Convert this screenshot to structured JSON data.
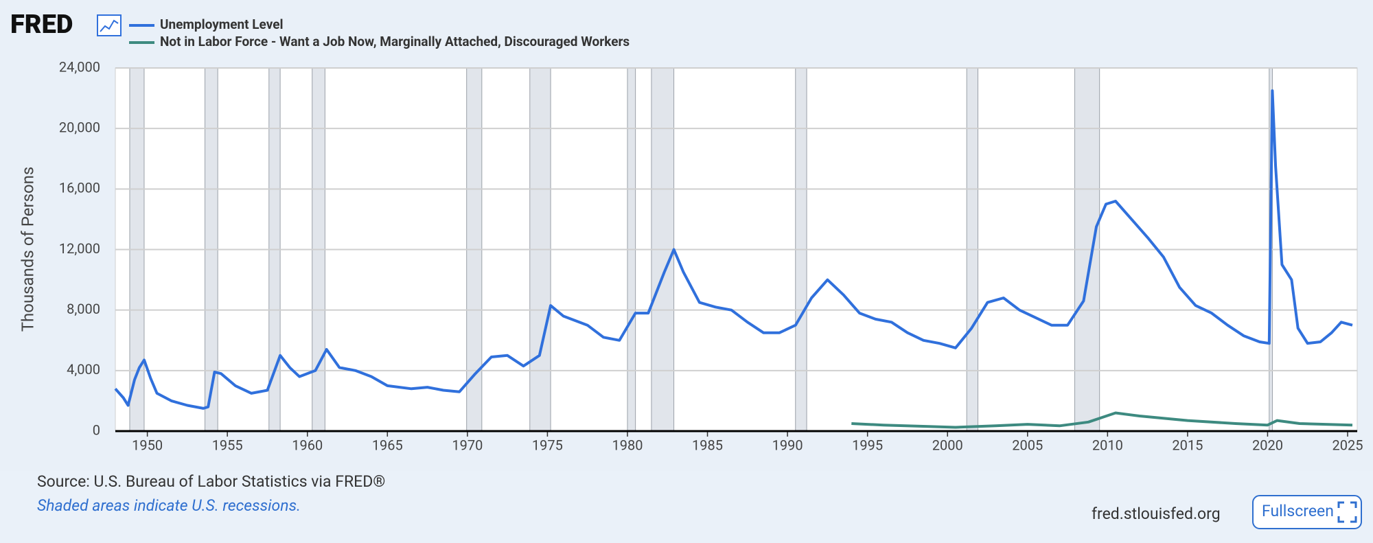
{
  "logo": "FRED",
  "chart_data": {
    "type": "line",
    "y_label": "Thousands of Persons",
    "source": "Source: U.S. Bureau of Labor Statistics via FRED®",
    "note": "Shaded areas indicate U.S. recessions.",
    "site": "fred.stlouisfed.org",
    "button": "Fullscreen",
    "xlim": [
      1948,
      2025.6
    ],
    "ylim": [
      0,
      24000
    ],
    "xticks": [
      1950,
      1955,
      1960,
      1965,
      1970,
      1975,
      1980,
      1985,
      1990,
      1995,
      2000,
      2005,
      2010,
      2015,
      2020,
      2025
    ],
    "yticks": [
      0,
      {
        "value": 4000,
        "label": "4,000"
      },
      {
        "value": 8000,
        "label": "8,000"
      },
      {
        "value": 12000,
        "label": "12,000"
      },
      {
        "value": 16000,
        "label": "16,000"
      },
      {
        "value": 20000,
        "label": "20,000"
      },
      {
        "value": 24000,
        "label": "24,000"
      }
    ],
    "grid": true,
    "recessions": [
      [
        1948.9,
        1949.8
      ],
      [
        1953.6,
        1954.4
      ],
      [
        1957.6,
        1958.3
      ],
      [
        1960.3,
        1961.1
      ],
      [
        1969.95,
        1970.9
      ],
      [
        1973.9,
        1975.2
      ],
      [
        1980.0,
        1980.5
      ],
      [
        1981.5,
        1982.9
      ],
      [
        1990.5,
        1991.2
      ],
      [
        2001.2,
        2001.9
      ],
      [
        2007.95,
        2009.5
      ],
      [
        2020.1,
        2020.3
      ]
    ],
    "recession_color": "#e1e5eb",
    "series": [
      {
        "name": "Unemployment Level",
        "color": "#3070dc",
        "x": [
          1948.0,
          1948.5,
          1948.8,
          1949.2,
          1949.5,
          1949.8,
          1950.2,
          1950.6,
          1951.5,
          1952.5,
          1953.5,
          1953.8,
          1954.2,
          1954.6,
          1955.5,
          1956.5,
          1957.5,
          1958.3,
          1958.9,
          1959.5,
          1960.5,
          1961.2,
          1962.0,
          1963.0,
          1964.0,
          1965.0,
          1966.5,
          1967.5,
          1968.5,
          1969.5,
          1970.5,
          1971.5,
          1972.5,
          1973.5,
          1974.5,
          1975.2,
          1976.0,
          1977.5,
          1978.5,
          1979.5,
          1980.5,
          1981.3,
          1982.3,
          1982.9,
          1983.5,
          1984.5,
          1985.5,
          1986.5,
          1987.5,
          1988.5,
          1989.5,
          1990.5,
          1991.5,
          1992.5,
          1993.5,
          1994.5,
          1995.5,
          1996.5,
          1997.5,
          1998.5,
          1999.5,
          2000.5,
          2001.5,
          2002.5,
          2003.5,
          2004.5,
          2005.5,
          2006.5,
          2007.5,
          2008.5,
          2009.3,
          2009.9,
          2010.5,
          2011.5,
          2012.5,
          2013.5,
          2014.5,
          2015.5,
          2016.5,
          2017.5,
          2018.5,
          2019.5,
          2020.1,
          2020.3,
          2020.5,
          2020.9,
          2021.5,
          2021.9,
          2022.5,
          2023.3,
          2024.0,
          2024.6,
          2025.3
        ],
        "values": [
          2800,
          2200,
          1700,
          3400,
          4200,
          4700,
          3500,
          2500,
          2000,
          1700,
          1500,
          1600,
          3900,
          3800,
          3000,
          2500,
          2700,
          5000,
          4200,
          3600,
          4000,
          5400,
          4200,
          4000,
          3600,
          3000,
          2800,
          2900,
          2700,
          2600,
          3800,
          4900,
          5000,
          4300,
          5000,
          8300,
          7600,
          7000,
          6200,
          6000,
          7800,
          7800,
          10500,
          12000,
          10500,
          8500,
          8200,
          8000,
          7200,
          6500,
          6500,
          7000,
          8800,
          10000,
          9000,
          7800,
          7400,
          7200,
          6500,
          6000,
          5800,
          5500,
          6800,
          8500,
          8800,
          8000,
          7500,
          7000,
          7000,
          8600,
          13500,
          15000,
          15200,
          14000,
          12800,
          11500,
          9500,
          8300,
          7800,
          7000,
          6300,
          5900,
          5800,
          22500,
          17500,
          11000,
          10000,
          6800,
          5800,
          5900,
          6500,
          7200,
          7000
        ]
      },
      {
        "name": "Not in Labor Force - Want a Job Now, Marginally Attached, Discouraged Workers",
        "color": "#3d8a80",
        "x": [
          1994.0,
          1996.0,
          1999.0,
          2000.5,
          2003.0,
          2005.0,
          2007.0,
          2008.8,
          2010.5,
          2012.0,
          2015.0,
          2018.0,
          2020.0,
          2020.6,
          2022.0,
          2025.3
        ],
        "values": [
          500,
          400,
          300,
          250,
          350,
          450,
          350,
          600,
          1200,
          1000,
          700,
          500,
          400,
          700,
          500,
          400
        ]
      }
    ]
  }
}
